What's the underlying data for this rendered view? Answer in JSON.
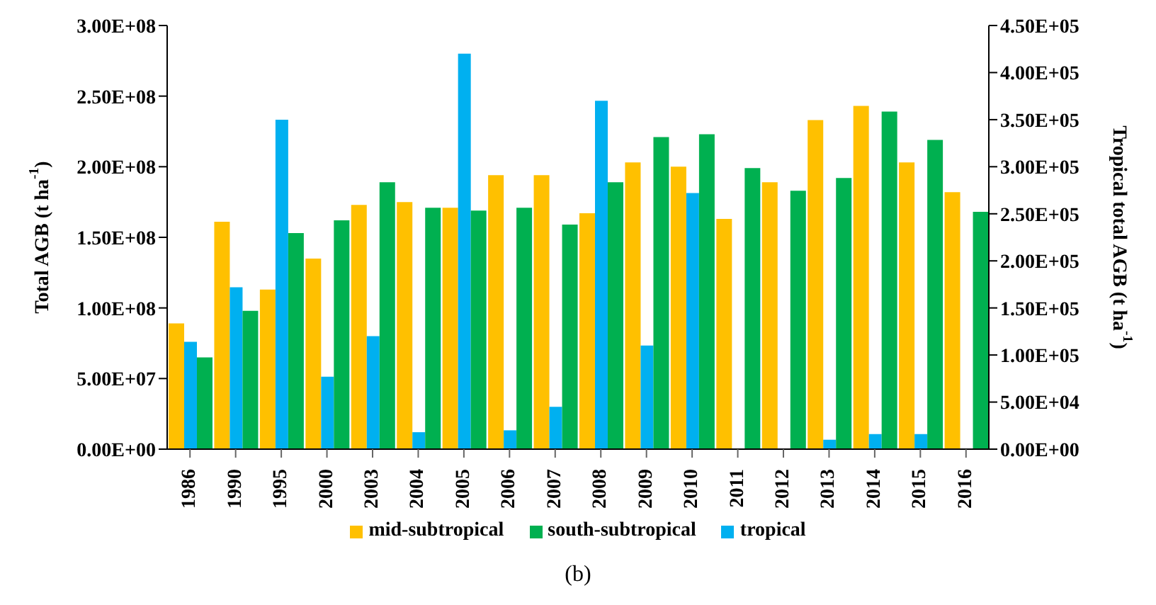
{
  "chart_data": {
    "type": "bar",
    "ylabel": "Total AGB (t ha$^{-1}$)",
    "y2label": "Tropical total AGB (t ha$^{-1}$)",
    "categories": [
      "1986",
      "1990",
      "1995",
      "2000",
      "2003",
      "2004",
      "2005",
      "2006",
      "2007",
      "2008",
      "2009",
      "2010",
      "2011",
      "2012",
      "2013",
      "2014",
      "2015",
      "2016"
    ],
    "series": [
      {
        "name": "mid-subtropical",
        "color": "#ffc000",
        "values": [
          89000000,
          161000000,
          113000000,
          135000000,
          173000000,
          175000000,
          171000000,
          194000000,
          194000000,
          167000000,
          203000000,
          200000000,
          163000000,
          189000000,
          233000000,
          243000000,
          203000000,
          182000000
        ]
      },
      {
        "name": "south-subtropical",
        "color": "#00b050",
        "values": [
          65000000,
          98000000,
          153000000,
          162000000,
          189000000,
          171000000,
          169000000,
          171000000,
          159000000,
          189000000,
          221000000,
          223000000,
          199000000,
          183000000,
          192000000,
          239000000,
          219000000,
          168000000
        ]
      },
      {
        "name": "tropical",
        "color": "#00b0f0",
        "axis": "y2",
        "values": [
          114000,
          172000,
          350000,
          77000,
          120000,
          18000,
          420000,
          20000,
          45000,
          370000,
          110000,
          272000,
          null,
          null,
          10000,
          16000,
          16000,
          null
        ]
      }
    ],
    "ylim": [
      0,
      300000000
    ],
    "yticks": [
      {
        "value": 0,
        "label": "0.00E+00"
      },
      {
        "value": 50000000,
        "label": "5.00E+07"
      },
      {
        "value": 100000000,
        "label": "1.00E+08"
      },
      {
        "value": 150000000,
        "label": "1.50E+08"
      },
      {
        "value": 200000000,
        "label": "2.00E+08"
      },
      {
        "value": 250000000,
        "label": "2.50E+08"
      },
      {
        "value": 300000000,
        "label": "3.00E+08"
      }
    ],
    "y2lim": [
      0,
      450000
    ],
    "y2ticks": [
      {
        "value": 0,
        "label": "0.00E+00"
      },
      {
        "value": 50000,
        "label": "5.00E+04"
      },
      {
        "value": 100000,
        "label": "1.00E+05"
      },
      {
        "value": 150000,
        "label": "1.50E+05"
      },
      {
        "value": 200000,
        "label": "2.00E+05"
      },
      {
        "value": 250000,
        "label": "2.50E+05"
      },
      {
        "value": 300000,
        "label": "3.00E+05"
      },
      {
        "value": 350000,
        "label": "3.50E+05"
      },
      {
        "value": 400000,
        "label": "4.00E+05"
      },
      {
        "value": 450000,
        "label": "4.50E+05"
      }
    ],
    "legend": "bottom",
    "annotations": [
      "(b)"
    ]
  }
}
